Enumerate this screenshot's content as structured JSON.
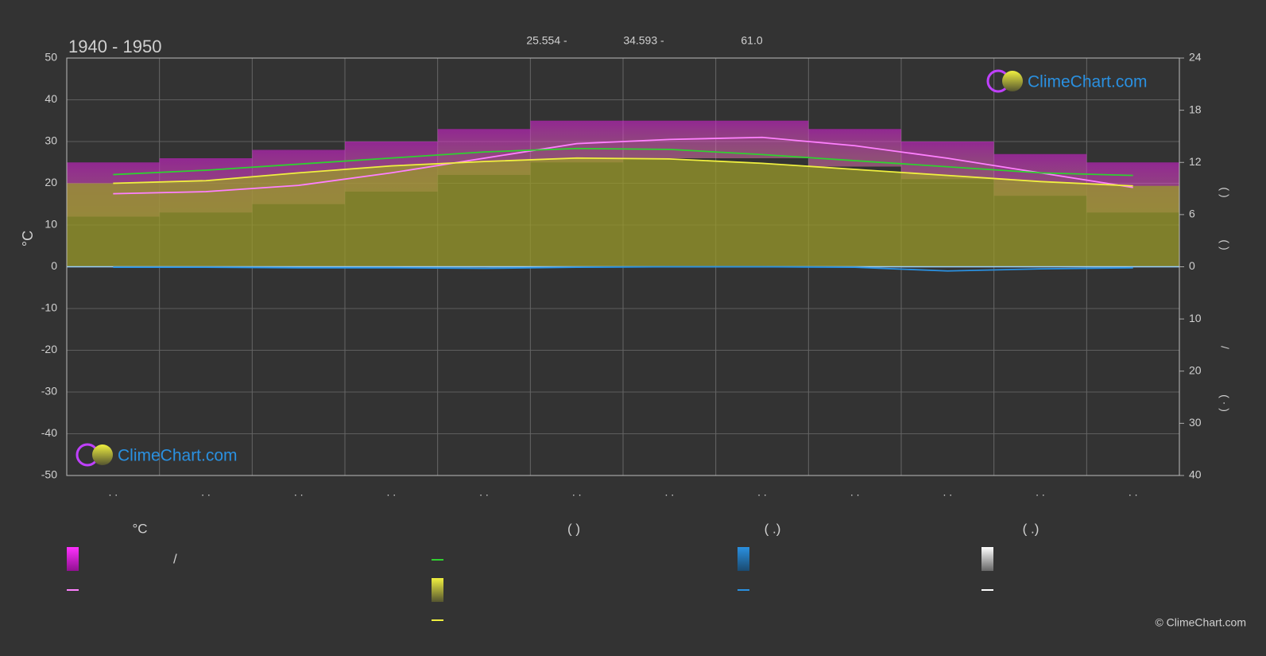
{
  "chart_data": {
    "type": "line",
    "title": "1940 - 1950",
    "header_stats": [
      "25.554 -",
      "34.593 -",
      "61.0"
    ],
    "y_label": "°C",
    "y2_labels": [
      "(    )",
      "(    )"
    ],
    "y3_labels": [
      "/",
      "(  ·  )"
    ],
    "categories": [
      ". .",
      ". .",
      ". .",
      ". .",
      ". .",
      ". .",
      ". .",
      ". .",
      ". .",
      ". .",
      ". .",
      ". ."
    ],
    "ylim": [
      -50,
      50
    ],
    "yticks": [
      -50,
      -40,
      -30,
      -20,
      -10,
      0,
      10,
      20,
      30,
      40,
      50
    ],
    "y2lim": [
      0,
      24
    ],
    "y2ticks": [
      0,
      6,
      12,
      18,
      24
    ],
    "y3lim": [
      0,
      40
    ],
    "y3ticks": [
      10,
      20,
      30,
      40
    ],
    "grid": true,
    "range": {
      "color": "#d020d0",
      "max": [
        25,
        26,
        28,
        30,
        33,
        35,
        35,
        35,
        33,
        30,
        27,
        25
      ],
      "min": [
        12,
        13,
        15,
        18,
        22,
        25,
        26,
        26,
        24,
        21,
        17,
        13
      ]
    },
    "area": {
      "color": "#9a9a2a",
      "series": 2
    },
    "series": [
      {
        "color": "#ff80ff",
        "axis": "y",
        "values": [
          17.5,
          18,
          19.5,
          22.5,
          26,
          29.5,
          30.5,
          31,
          29,
          26,
          22.5,
          19
        ]
      },
      {
        "color": "#30d030",
        "axis": "y2",
        "values": [
          10.6,
          11.1,
          11.8,
          12.5,
          13.2,
          13.6,
          13.5,
          12.9,
          12.2,
          11.5,
          10.8,
          10.5
        ]
      },
      {
        "color": "#f0f040",
        "axis": "y2",
        "values": [
          9.6,
          9.9,
          10.8,
          11.6,
          12.1,
          12.5,
          12.4,
          11.9,
          11.2,
          10.5,
          9.8,
          9.3
        ]
      },
      {
        "color": "#2a90e0",
        "axis": "y3",
        "values": [
          0.1,
          0.1,
          0.2,
          0.2,
          0.3,
          0.1,
          0,
          0,
          0.1,
          0.8,
          0.4,
          0.2
        ]
      }
    ],
    "legend": {
      "headers": [
        "°C",
        "(          )",
        "(    .)",
        "(    .)"
      ],
      "texts": [
        "/"
      ]
    },
    "logo_text": "ClimeChart.com",
    "copyright": "© ClimeChart.com"
  }
}
